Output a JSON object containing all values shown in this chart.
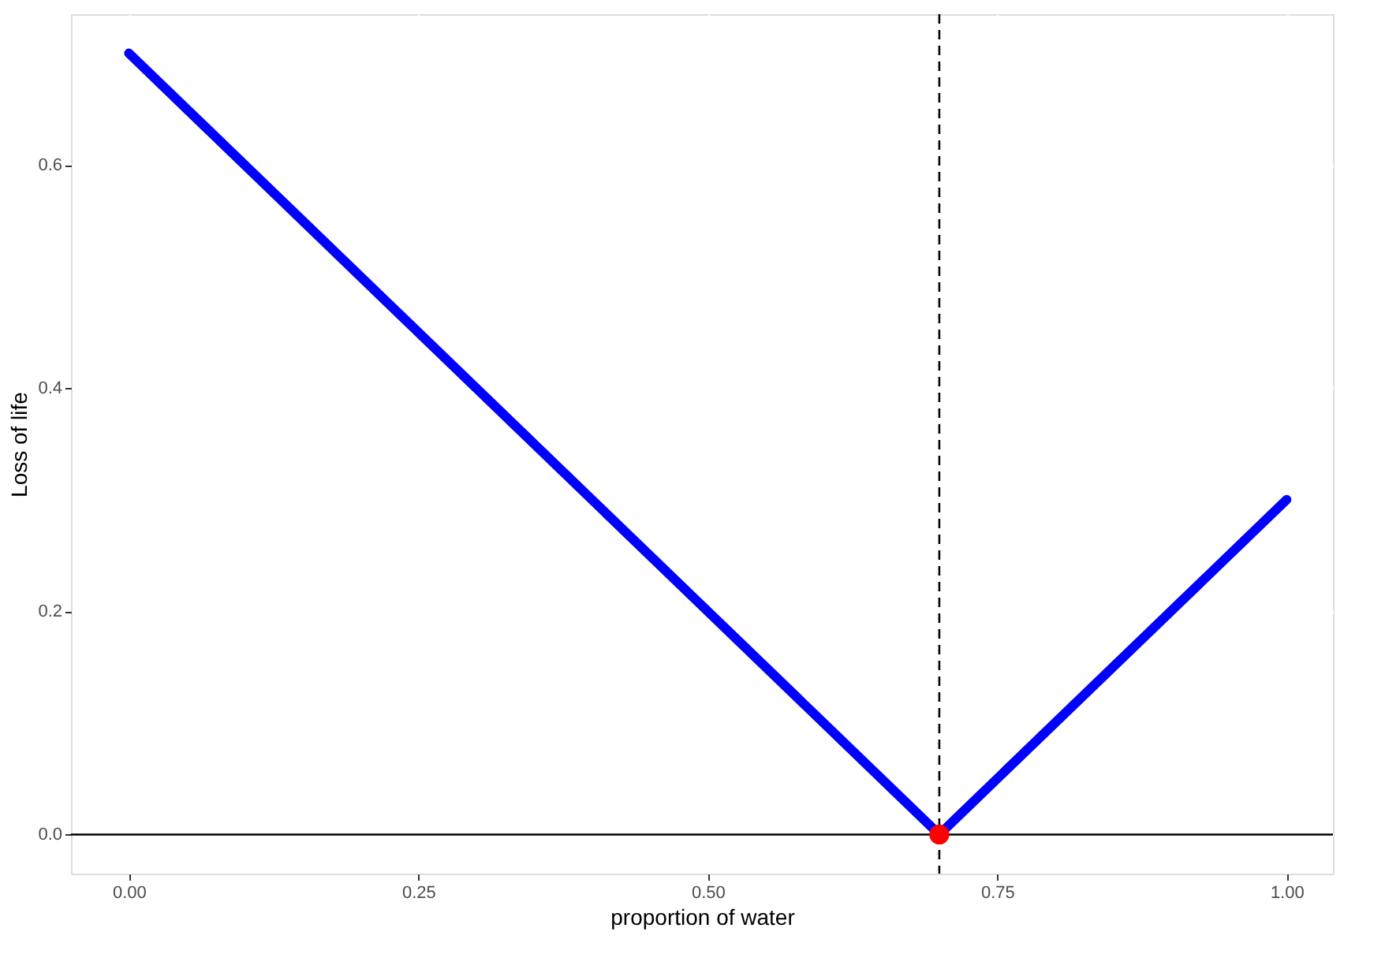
{
  "chart_data": {
    "type": "line",
    "xlabel": "proportion of water",
    "ylabel": "Loss of life",
    "xlim": [
      -0.05,
      1.04
    ],
    "ylim": [
      -0.035,
      0.735
    ],
    "xticks": [
      {
        "value": 0,
        "label": "0.00"
      },
      {
        "value": 0.25,
        "label": "0.25"
      },
      {
        "value": 0.5,
        "label": "0.50"
      },
      {
        "value": 0.75,
        "label": "0.75"
      },
      {
        "value": 1,
        "label": "1.00"
      }
    ],
    "yticks": [
      {
        "value": 0,
        "label": "0.0"
      },
      {
        "value": 0.2,
        "label": "0.2"
      },
      {
        "value": 0.4,
        "label": "0.4"
      },
      {
        "value": 0.6,
        "label": "0.6"
      }
    ],
    "grid": true,
    "series": [
      {
        "color": "#0000ff",
        "x": [
          0,
          0.7,
          1
        ],
        "values": [
          0.7,
          0,
          0.3
        ],
        "line_style": "solid"
      },
      {
        "type": "scatter",
        "color": "#ff0000",
        "x": [
          0.7
        ],
        "values": [
          0
        ],
        "marker": "circle"
      }
    ],
    "ref_lines": [
      {
        "axis": "y",
        "value": 0,
        "color": "#000000",
        "line_style": "solid"
      },
      {
        "axis": "x",
        "value": 0.7,
        "color": "#000000",
        "line_style": "dashed"
      }
    ]
  }
}
